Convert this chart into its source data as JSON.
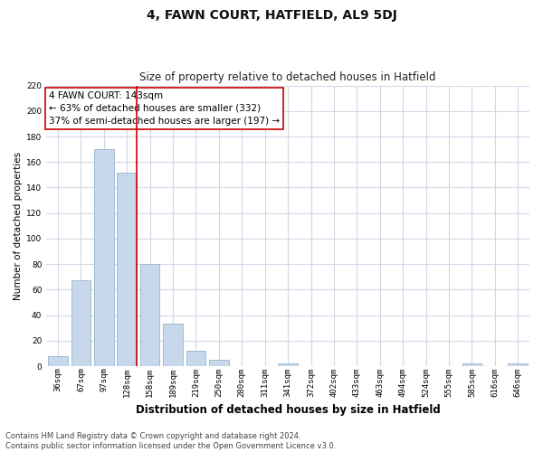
{
  "title": "4, FAWN COURT, HATFIELD, AL9 5DJ",
  "subtitle": "Size of property relative to detached houses in Hatfield",
  "xlabel": "Distribution of detached houses by size in Hatfield",
  "ylabel": "Number of detached properties",
  "categories": [
    "36sqm",
    "67sqm",
    "97sqm",
    "128sqm",
    "158sqm",
    "189sqm",
    "219sqm",
    "250sqm",
    "280sqm",
    "311sqm",
    "341sqm",
    "372sqm",
    "402sqm",
    "433sqm",
    "463sqm",
    "494sqm",
    "524sqm",
    "555sqm",
    "585sqm",
    "616sqm",
    "646sqm"
  ],
  "values": [
    8,
    67,
    170,
    152,
    80,
    33,
    12,
    5,
    0,
    0,
    2,
    0,
    0,
    0,
    0,
    0,
    0,
    0,
    2,
    0,
    2
  ],
  "bar_color": "#c8d8ec",
  "bar_edge_color": "#9ab4cc",
  "vline_color": "#cc0000",
  "vline_x": 3.43,
  "annotation_title": "4 FAWN COURT: 143sqm",
  "annotation_line1": "← 63% of detached houses are smaller (332)",
  "annotation_line2": "37% of semi-detached houses are larger (197) →",
  "annotation_box_facecolor": "#ffffff",
  "annotation_box_edgecolor": "#cc0000",
  "ylim": [
    0,
    220
  ],
  "yticks": [
    0,
    20,
    40,
    60,
    80,
    100,
    120,
    140,
    160,
    180,
    200,
    220
  ],
  "bg_color": "#ffffff",
  "plot_bg_color": "#ffffff",
  "grid_color": "#d0d8e8",
  "footer_line1": "Contains HM Land Registry data © Crown copyright and database right 2024.",
  "footer_line2": "Contains public sector information licensed under the Open Government Licence v3.0.",
  "title_fontsize": 10,
  "subtitle_fontsize": 8.5,
  "xlabel_fontsize": 8.5,
  "ylabel_fontsize": 7.5,
  "tick_fontsize": 6.5,
  "annotation_fontsize": 7.5,
  "footer_fontsize": 6
}
